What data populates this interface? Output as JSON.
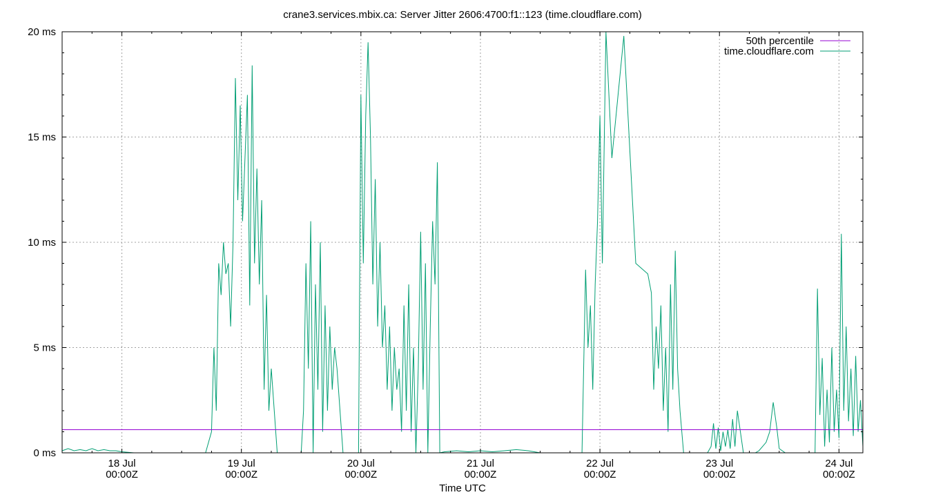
{
  "chart_data": {
    "type": "line",
    "title": "crane3.services.mbix.ca: Server Jitter 2606:4700:f1::123 (time.cloudflare.com)",
    "xlabel": "Time UTC",
    "ylabel": "",
    "x_ticks": [
      {
        "day": 1,
        "line1": "18 Jul",
        "line2": "00:00Z"
      },
      {
        "day": 2,
        "line1": "19 Jul",
        "line2": "00:00Z"
      },
      {
        "day": 3,
        "line1": "20 Jul",
        "line2": "00:00Z"
      },
      {
        "day": 4,
        "line1": "21 Jul",
        "line2": "00:00Z"
      },
      {
        "day": 5,
        "line1": "22 Jul",
        "line2": "00:00Z"
      },
      {
        "day": 6,
        "line1": "23 Jul",
        "line2": "00:00Z"
      },
      {
        "day": 7,
        "line1": "24 Jul",
        "line2": "00:00Z"
      }
    ],
    "y_ticks": [
      {
        "value": 0,
        "label": "0 ms"
      },
      {
        "value": 5,
        "label": "5 ms"
      },
      {
        "value": 10,
        "label": "10 ms"
      },
      {
        "value": 15,
        "label": "15 ms"
      },
      {
        "value": 20,
        "label": "20 ms"
      }
    ],
    "xlim": [
      0.5,
      7.2
    ],
    "ylim": [
      0,
      20
    ],
    "grid": true,
    "legend_position": "top-right",
    "series": [
      {
        "name": "50th percentile",
        "color": "#9400d3",
        "x": [
          0.5,
          7.2
        ],
        "y": [
          1.1,
          1.1
        ]
      },
      {
        "name": "time.cloudflare.com",
        "color": "#009e73",
        "x": [
          0.5,
          0.55,
          0.6,
          0.65,
          0.7,
          0.75,
          0.8,
          0.85,
          0.9,
          0.95,
          1.0,
          1.1,
          1.2,
          1.3,
          1.4,
          1.5,
          1.6,
          1.7,
          1.75,
          1.77,
          1.79,
          1.81,
          1.83,
          1.85,
          1.87,
          1.89,
          1.91,
          1.93,
          1.95,
          1.97,
          1.99,
          2.01,
          2.03,
          2.05,
          2.07,
          2.09,
          2.11,
          2.13,
          2.15,
          2.17,
          2.19,
          2.21,
          2.23,
          2.25,
          2.3,
          2.4,
          2.5,
          2.52,
          2.54,
          2.56,
          2.58,
          2.6,
          2.62,
          2.64,
          2.66,
          2.68,
          2.7,
          2.72,
          2.74,
          2.76,
          2.78,
          2.8,
          2.85,
          2.9,
          2.95,
          2.98,
          3.0,
          3.02,
          3.04,
          3.06,
          3.08,
          3.1,
          3.12,
          3.14,
          3.16,
          3.18,
          3.2,
          3.22,
          3.24,
          3.26,
          3.28,
          3.3,
          3.32,
          3.34,
          3.36,
          3.38,
          3.4,
          3.42,
          3.44,
          3.46,
          3.48,
          3.5,
          3.52,
          3.54,
          3.56,
          3.58,
          3.6,
          3.62,
          3.64,
          3.66,
          3.7,
          3.8,
          3.9,
          4.0,
          4.1,
          4.2,
          4.3,
          4.4,
          4.5,
          4.6,
          4.7,
          4.8,
          4.85,
          4.88,
          4.9,
          4.92,
          4.94,
          4.96,
          4.98,
          5.0,
          5.02,
          5.05,
          5.1,
          5.2,
          5.3,
          5.4,
          5.43,
          5.45,
          5.47,
          5.49,
          5.51,
          5.53,
          5.55,
          5.57,
          5.59,
          5.61,
          5.63,
          5.65,
          5.67,
          5.7,
          5.8,
          5.9,
          5.93,
          5.95,
          5.97,
          5.99,
          6.01,
          6.03,
          6.05,
          6.07,
          6.09,
          6.11,
          6.13,
          6.15,
          6.2,
          6.3,
          6.33,
          6.36,
          6.39,
          6.42,
          6.45,
          6.48,
          6.5,
          6.55,
          6.65,
          6.75,
          6.8,
          6.82,
          6.84,
          6.86,
          6.88,
          6.9,
          6.92,
          6.94,
          6.96,
          6.98,
          7.0,
          7.02,
          7.04,
          7.06,
          7.08,
          7.1,
          7.12,
          7.14,
          7.16,
          7.18,
          7.2
        ],
        "y": [
          0.1,
          0.2,
          0.1,
          0.15,
          0.1,
          0.2,
          0.1,
          0.15,
          0.1,
          0.1,
          0.05,
          0.0,
          0.0,
          0.0,
          0.0,
          0.0,
          0.0,
          0.0,
          1.0,
          5.0,
          2.0,
          9.0,
          7.5,
          10.0,
          8.5,
          9.0,
          6.0,
          10.0,
          17.8,
          12.0,
          16.5,
          11.0,
          14.0,
          17.0,
          7.0,
          18.4,
          9.0,
          13.5,
          8.0,
          12.0,
          3.0,
          7.5,
          2.0,
          4.0,
          0.0,
          0.0,
          0.0,
          2.0,
          9.0,
          4.0,
          11.0,
          0.0,
          8.0,
          3.0,
          10.0,
          1.0,
          7.0,
          2.0,
          6.0,
          3.0,
          5.0,
          4.0,
          0.0,
          0.0,
          0.0,
          0.0,
          17.0,
          9.0,
          16.0,
          19.5,
          15.0,
          8.0,
          13.0,
          6.0,
          10.0,
          5.0,
          7.0,
          3.0,
          6.0,
          2.0,
          5.0,
          3.0,
          4.0,
          1.0,
          7.0,
          2.0,
          8.0,
          1.0,
          5.0,
          0.0,
          4.0,
          10.5,
          3.0,
          9.0,
          0.0,
          6.0,
          11.0,
          8.0,
          13.8,
          0.0,
          0.05,
          0.1,
          0.05,
          0.1,
          0.05,
          0.1,
          0.15,
          0.1,
          0.0,
          0.0,
          0.0,
          0.0,
          0.0,
          8.7,
          5.0,
          7.0,
          3.0,
          8.0,
          11.0,
          16.0,
          9.0,
          20.0,
          14.0,
          19.8,
          9.0,
          8.5,
          7.6,
          3.0,
          6.0,
          4.0,
          7.0,
          2.0,
          5.0,
          1.0,
          8.0,
          3.0,
          9.6,
          4.0,
          2.0,
          0.0,
          0.0,
          0.0,
          0.3,
          1.4,
          0.2,
          1.2,
          0.1,
          1.0,
          0.3,
          1.1,
          0.2,
          1.6,
          0.3,
          2.0,
          0.0,
          0.0,
          0.1,
          0.3,
          0.5,
          1.0,
          2.4,
          1.2,
          0.2,
          0.0,
          0.0,
          0.0,
          0.0,
          7.8,
          1.8,
          4.5,
          0.3,
          3.0,
          0.5,
          5.0,
          1.0,
          3.0,
          0.7,
          10.4,
          2.0,
          6.0,
          1.5,
          4.0,
          0.8,
          4.6,
          1.0,
          2.5,
          0.3
        ]
      }
    ]
  }
}
